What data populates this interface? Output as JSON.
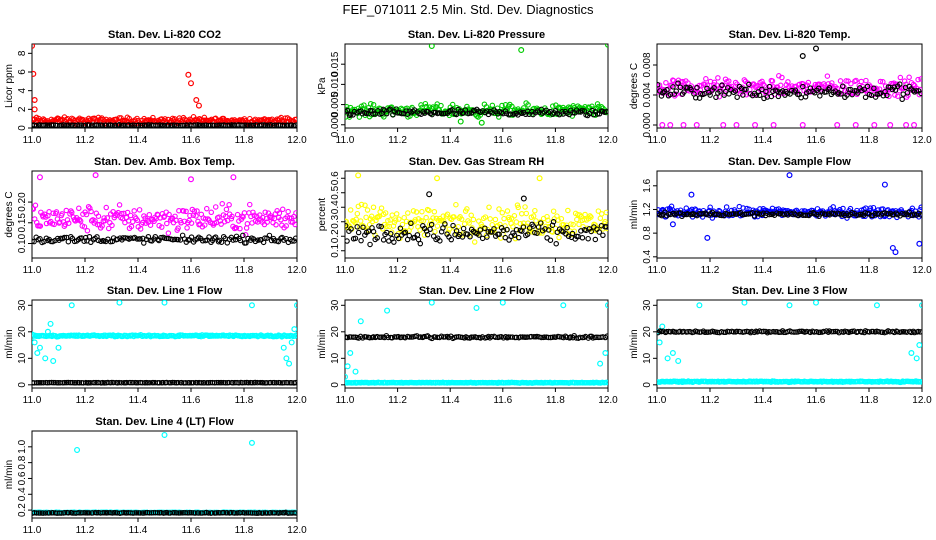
{
  "page": {
    "title": "FEF_071011  2.5 Min. Std. Dev. Diagnostics"
  },
  "colors": {
    "red": "#ff0000",
    "green": "#00cc00",
    "magenta": "#ff00ff",
    "yellow": "#ffff00",
    "blue": "#0000ff",
    "cyan": "#00ffff",
    "black": "#000000"
  },
  "chart_data": [
    {
      "type": "scatter",
      "title": "Stan. Dev. Li-820 CO2",
      "ylabel": "Licor ppm",
      "xlim": [
        11.0,
        12.0
      ],
      "ylim": [
        0,
        9
      ],
      "xticks": [
        "11.0",
        "11.2",
        "11.4",
        "11.6",
        "11.8",
        "12.0"
      ],
      "yticks": [
        {
          "v": 0,
          "t": "0"
        },
        {
          "v": 2,
          "t": "2"
        },
        {
          "v": 4,
          "t": "4"
        },
        {
          "v": 6,
          "t": "6"
        },
        {
          "v": 8,
          "t": "8"
        }
      ],
      "series": [
        {
          "color": "red",
          "base": 0.8,
          "noise": 0.5,
          "outliers": [
            [
              11.0,
              8.8
            ],
            [
              11.005,
              5.8
            ],
            [
              11.01,
              3.0
            ],
            [
              11.01,
              2.0
            ],
            [
              11.59,
              5.7
            ],
            [
              11.6,
              4.8
            ],
            [
              11.62,
              3.0
            ],
            [
              11.63,
              2.4
            ]
          ]
        },
        {
          "color": "black",
          "base": 0.3,
          "noise": 0.06,
          "outliers": []
        }
      ]
    },
    {
      "type": "scatter",
      "title": "Stan. Dev. Li-820 Pressure",
      "ylabel": "kPa",
      "xlim": [
        11.0,
        12.0
      ],
      "ylim": [
        -0.0008,
        0.02
      ],
      "xticks": [
        "11.0",
        "11.2",
        "11.4",
        "11.6",
        "11.8",
        "12.0"
      ],
      "yticks": [
        {
          "v": 0,
          "t": "0.000"
        },
        {
          "v": 0.005,
          "t": "0.005"
        },
        {
          "v": 0.01,
          "t": "0.010"
        },
        {
          "v": 0.015,
          "t": "0.015"
        }
      ],
      "series": [
        {
          "color": "green",
          "base": 0.0035,
          "noise": 0.0022,
          "outliers": [
            [
              11.33,
              0.0195
            ],
            [
              11.67,
              0.0185
            ],
            [
              12.0,
              0.0198
            ],
            [
              11.44,
              0.0008
            ],
            [
              11.52,
              0.0005
            ]
          ]
        },
        {
          "color": "black",
          "base": 0.003,
          "noise": 0.0012,
          "outliers": []
        }
      ]
    },
    {
      "type": "scatter",
      "title": "Stan. Dev. Li-820 Temp.",
      "ylabel": "degrees C",
      "xlim": [
        11.0,
        12.0
      ],
      "ylim": [
        -0.0004,
        0.0108
      ],
      "xticks": [
        "11.0",
        "11.2",
        "11.4",
        "11.6",
        "11.8",
        "12.0"
      ],
      "yticks": [
        {
          "v": 0,
          "t": "0.000"
        },
        {
          "v": 0.004,
          "t": "0.004"
        },
        {
          "v": 0.008,
          "t": "0.008"
        }
      ],
      "series": [
        {
          "color": "magenta",
          "base": 0.005,
          "noise": 0.0018,
          "outliers": [
            [
              11.02,
              0
            ],
            [
              11.05,
              0
            ],
            [
              11.1,
              0
            ],
            [
              11.15,
              0
            ],
            [
              11.25,
              0
            ],
            [
              11.3,
              0
            ],
            [
              11.37,
              0
            ],
            [
              11.44,
              0
            ],
            [
              11.55,
              0
            ],
            [
              11.68,
              0
            ],
            [
              11.75,
              0
            ],
            [
              11.82,
              0
            ],
            [
              11.88,
              0
            ],
            [
              11.94,
              0
            ],
            [
              11.97,
              0
            ]
          ]
        },
        {
          "color": "black",
          "base": 0.0045,
          "noise": 0.0015,
          "outliers": [
            [
              11.6,
              0.0102
            ],
            [
              11.55,
              0.0092
            ]
          ]
        }
      ]
    },
    {
      "type": "scatter",
      "title": "Stan. Dev. Amb. Box Temp.",
      "ylabel": "degrees C",
      "xlim": [
        11.0,
        12.0
      ],
      "ylim": [
        0.065,
        0.275
      ],
      "xticks": [
        "11.0",
        "11.2",
        "11.4",
        "11.6",
        "11.8",
        "12.0"
      ],
      "yticks": [
        {
          "v": 0.1,
          "t": "0.10"
        },
        {
          "v": 0.15,
          "t": "0.15"
        },
        {
          "v": 0.2,
          "t": "0.20"
        }
      ],
      "series": [
        {
          "color": "magenta",
          "base": 0.16,
          "noise": 0.045,
          "outliers": [
            [
              11.03,
              0.26
            ],
            [
              11.24,
              0.265
            ],
            [
              11.76,
              0.26
            ],
            [
              11.6,
              0.255
            ]
          ]
        },
        {
          "color": "black",
          "base": 0.11,
          "noise": 0.012,
          "outliers": []
        }
      ]
    },
    {
      "type": "scatter",
      "title": "Stan. Dev. Gas Stream RH",
      "ylabel": "percent",
      "xlim": [
        11.0,
        12.0
      ],
      "ylim": [
        0.05,
        0.65
      ],
      "xticks": [
        "11.0",
        "11.2",
        "11.4",
        "11.6",
        "11.8",
        "12.0"
      ],
      "yticks": [
        {
          "v": 0.1,
          "t": "0.1"
        },
        {
          "v": 0.2,
          "t": "0.2"
        },
        {
          "v": 0.3,
          "t": "0.3"
        },
        {
          "v": 0.4,
          "t": "0.4"
        },
        {
          "v": 0.5,
          "t": "0.5"
        },
        {
          "v": 0.6,
          "t": "0.6"
        }
      ],
      "series": [
        {
          "color": "yellow",
          "base": 0.3,
          "noise": 0.16,
          "outliers": [
            [
              11.05,
              0.62
            ],
            [
              11.35,
              0.6
            ],
            [
              11.74,
              0.6
            ]
          ]
        },
        {
          "color": "black",
          "base": 0.22,
          "noise": 0.1,
          "outliers": [
            [
              11.32,
              0.49
            ],
            [
              11.68,
              0.46
            ]
          ]
        }
      ]
    },
    {
      "type": "scatter",
      "title": "Stan. Dev. Sample Flow",
      "ylabel": "ml/min",
      "xlim": [
        11.0,
        12.0
      ],
      "ylim": [
        0.38,
        1.85
      ],
      "xticks": [
        "11.0",
        "11.2",
        "11.4",
        "11.6",
        "11.8",
        "12.0"
      ],
      "yticks": [
        {
          "v": 0.4,
          "t": "0.4"
        },
        {
          "v": 0.8,
          "t": "0.8"
        },
        {
          "v": 1.2,
          "t": "1.2"
        },
        {
          "v": 1.6,
          "t": "1.6"
        }
      ],
      "series": [
        {
          "color": "blue",
          "base": 1.15,
          "noise": 0.12,
          "outliers": [
            [
              11.5,
              1.78
            ],
            [
              11.19,
              0.72
            ],
            [
              11.06,
              0.95
            ],
            [
              11.9,
              0.48
            ],
            [
              11.89,
              0.55
            ],
            [
              11.99,
              0.62
            ],
            [
              11.86,
              1.62
            ],
            [
              11.13,
              1.45
            ]
          ]
        },
        {
          "color": "black",
          "base": 1.12,
          "noise": 0.05,
          "outliers": []
        }
      ]
    },
    {
      "type": "scatter",
      "title": "Stan. Dev. Line 1 Flow",
      "ylabel": "ml/min",
      "xlim": [
        11.0,
        12.0
      ],
      "ylim": [
        -1.2,
        32
      ],
      "xticks": [
        "11.0",
        "11.2",
        "11.4",
        "11.6",
        "11.8",
        "12.0"
      ],
      "yticks": [
        {
          "v": 0,
          "t": "0"
        },
        {
          "v": 10,
          "t": "10"
        },
        {
          "v": 20,
          "t": "20"
        },
        {
          "v": 30,
          "t": "30"
        }
      ],
      "series": [
        {
          "color": "cyan",
          "base": 18.5,
          "noise": 0.5,
          "outliers": [
            [
              11.0,
              19
            ],
            [
              11.01,
              16
            ],
            [
              11.02,
              12
            ],
            [
              11.03,
              14
            ],
            [
              11.05,
              10
            ],
            [
              11.06,
              20
            ],
            [
              11.07,
              23
            ],
            [
              11.08,
              9
            ],
            [
              11.1,
              14
            ],
            [
              11.15,
              30
            ],
            [
              11.33,
              31
            ],
            [
              11.5,
              31
            ],
            [
              11.83,
              30
            ],
            [
              11.95,
              14
            ],
            [
              11.96,
              10
            ],
            [
              11.97,
              8
            ],
            [
              11.98,
              16
            ],
            [
              11.99,
              21
            ],
            [
              12.0,
              30
            ]
          ]
        },
        {
          "color": "black",
          "base": 0.8,
          "noise": 0.1,
          "outliers": []
        }
      ]
    },
    {
      "type": "scatter",
      "title": "Stan. Dev. Line 2 Flow",
      "ylabel": "ml/min",
      "xlim": [
        11.0,
        12.0
      ],
      "ylim": [
        -1.2,
        32
      ],
      "xticks": [
        "11.0",
        "11.2",
        "11.4",
        "11.6",
        "11.8",
        "12.0"
      ],
      "yticks": [
        {
          "v": 0,
          "t": "0"
        },
        {
          "v": 10,
          "t": "10"
        },
        {
          "v": 20,
          "t": "20"
        },
        {
          "v": 30,
          "t": "30"
        }
      ],
      "series": [
        {
          "color": "cyan",
          "base": 0.8,
          "noise": 0.2,
          "outliers": [
            [
              11.0,
              3
            ],
            [
              11.01,
              7
            ],
            [
              11.02,
              12
            ],
            [
              11.04,
              5
            ],
            [
              11.06,
              24
            ],
            [
              11.16,
              28
            ],
            [
              11.33,
              31
            ],
            [
              11.5,
              29
            ],
            [
              11.6,
              31
            ],
            [
              11.83,
              30
            ],
            [
              11.97,
              8
            ],
            [
              11.99,
              12
            ],
            [
              12.0,
              30
            ]
          ]
        },
        {
          "color": "black",
          "base": 18,
          "noise": 0.6,
          "outliers": []
        }
      ]
    },
    {
      "type": "scatter",
      "title": "Stan. Dev. Line 3 Flow",
      "ylabel": "ml/min",
      "xlim": [
        11.0,
        12.0
      ],
      "ylim": [
        -1.2,
        32
      ],
      "xticks": [
        "11.0",
        "11.2",
        "11.4",
        "11.6",
        "11.8",
        "12.0"
      ],
      "yticks": [
        {
          "v": 0,
          "t": "0"
        },
        {
          "v": 10,
          "t": "10"
        },
        {
          "v": 20,
          "t": "20"
        },
        {
          "v": 30,
          "t": "30"
        }
      ],
      "series": [
        {
          "color": "cyan",
          "base": 1.2,
          "noise": 0.3,
          "outliers": [
            [
              11.0,
              20
            ],
            [
              11.01,
              16
            ],
            [
              11.02,
              22
            ],
            [
              11.04,
              10
            ],
            [
              11.06,
              12
            ],
            [
              11.08,
              9
            ],
            [
              11.16,
              30
            ],
            [
              11.33,
              31
            ],
            [
              11.5,
              30
            ],
            [
              11.6,
              31
            ],
            [
              11.83,
              30
            ],
            [
              11.96,
              12
            ],
            [
              11.98,
              10
            ],
            [
              11.99,
              15
            ],
            [
              12.0,
              30
            ]
          ]
        },
        {
          "color": "black",
          "base": 20,
          "noise": 0.5,
          "outliers": []
        }
      ]
    },
    {
      "type": "scatter",
      "title": "Stan. Dev. Line 4 (LT) Flow",
      "ylabel": "ml/min",
      "xlim": [
        11.0,
        12.0
      ],
      "ylim": [
        0.1,
        1.2
      ],
      "xticks": [
        "11.0",
        "11.2",
        "11.4",
        "11.6",
        "11.8",
        "12.0"
      ],
      "yticks": [
        {
          "v": 0.2,
          "t": "0.2"
        },
        {
          "v": 0.4,
          "t": "0.4"
        },
        {
          "v": 0.6,
          "t": "0.6"
        },
        {
          "v": 0.8,
          "t": "0.8"
        },
        {
          "v": 1.0,
          "t": "1.0"
        }
      ],
      "series": [
        {
          "color": "cyan",
          "base": 0.17,
          "noise": 0.006,
          "outliers": [
            [
              11.17,
              0.96
            ],
            [
              11.5,
              1.15
            ],
            [
              11.83,
              1.05
            ]
          ]
        },
        {
          "color": "black",
          "base": 0.165,
          "noise": 0.006,
          "outliers": []
        }
      ]
    }
  ]
}
